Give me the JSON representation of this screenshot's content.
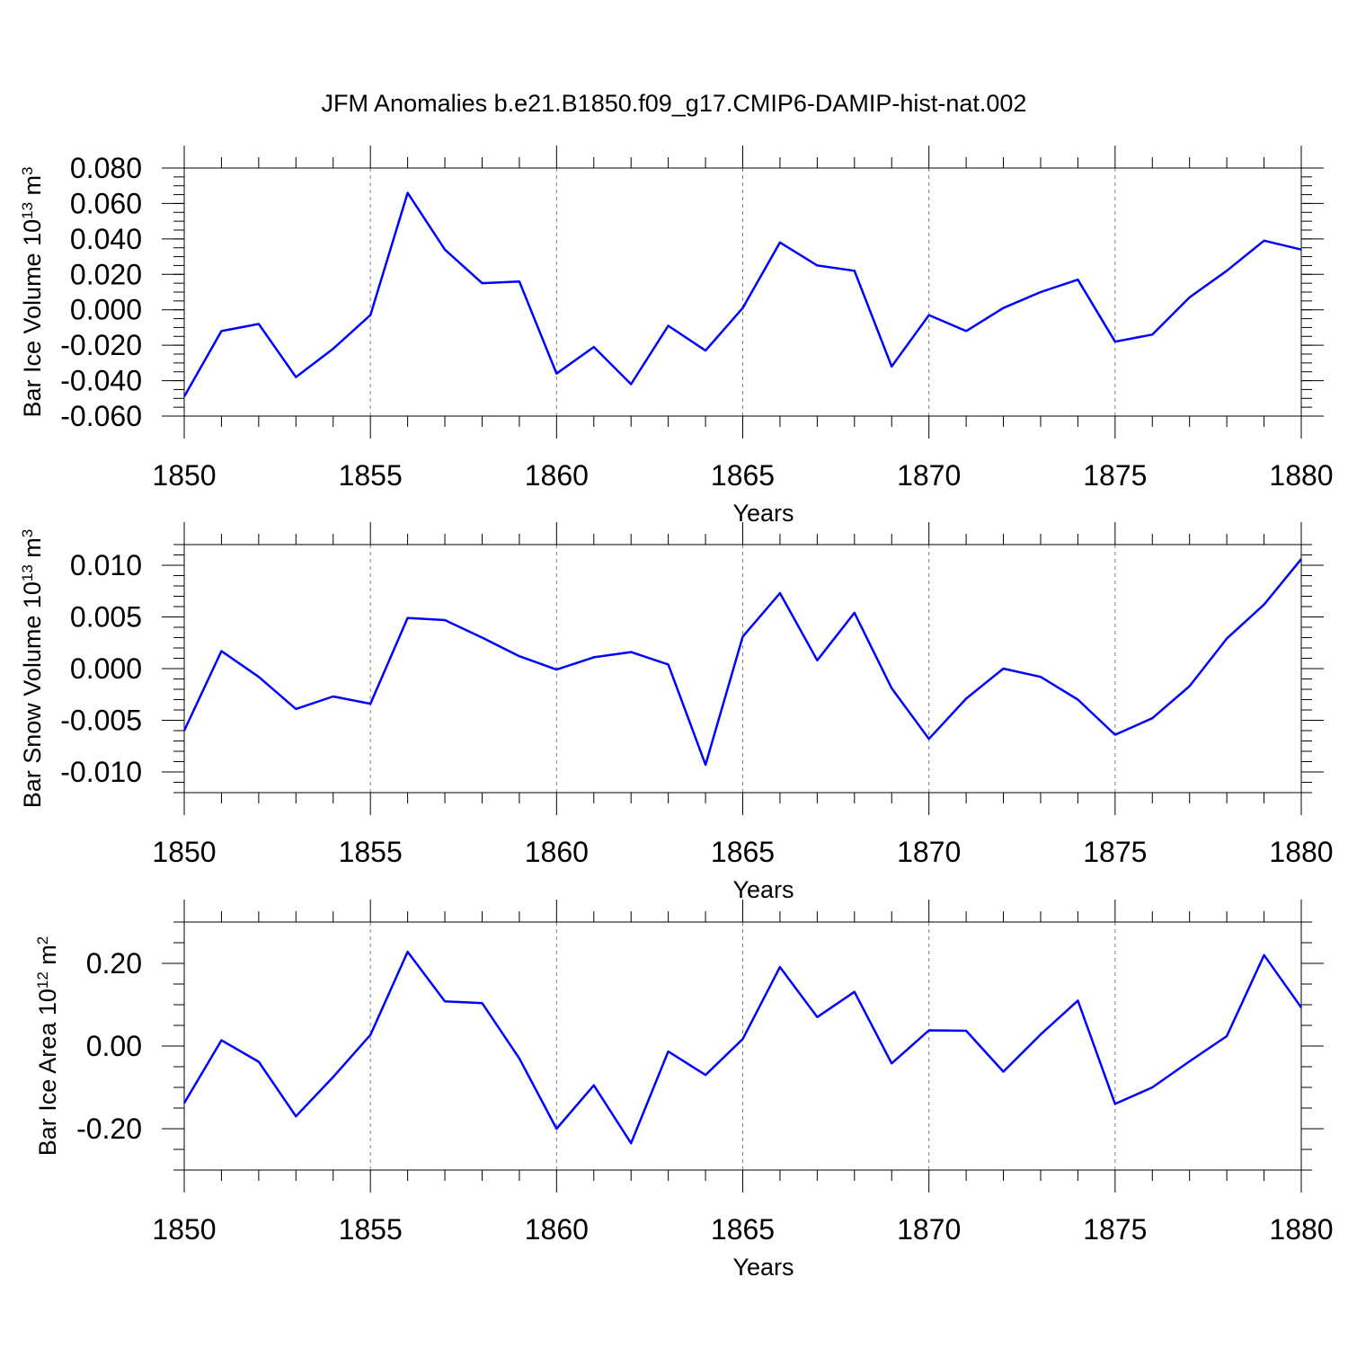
{
  "title": "JFM Anomalies b.e21.B1850.f09_g17.CMIP6-DAMIP-hist-nat.002",
  "colors": {
    "line": "#0000ff",
    "grid": "#808080",
    "frame": "#000000"
  },
  "chart_data": [
    {
      "type": "line",
      "ylabel": {
        "prefix": "Bar Ice Volume 10",
        "exp": "13",
        "unit": " m",
        "unit_exp": "3"
      },
      "xlabel": "Years",
      "xlim": [
        1850,
        1880
      ],
      "ylim": [
        -0.06,
        0.08
      ],
      "xticks": [
        1850,
        1855,
        1860,
        1865,
        1870,
        1875,
        1880
      ],
      "xtick_labels": [
        "1850",
        "1855",
        "1860",
        "1865",
        "1870",
        "1875",
        "1880"
      ],
      "yticks": [
        -0.06,
        -0.04,
        -0.02,
        0.0,
        0.02,
        0.04,
        0.06,
        0.08
      ],
      "ytick_labels": [
        "-0.060",
        "-0.040",
        "-0.020",
        "0.000",
        "0.020",
        "0.040",
        "0.060",
        "0.080"
      ],
      "yminor": 0.005,
      "grid": "vertical dashed at major x ticks",
      "x": [
        1850,
        1851,
        1852,
        1853,
        1854,
        1855,
        1856,
        1857,
        1858,
        1859,
        1860,
        1861,
        1862,
        1863,
        1864,
        1865,
        1866,
        1867,
        1868,
        1869,
        1870,
        1871,
        1872,
        1873,
        1874,
        1875,
        1876,
        1877,
        1878,
        1879,
        1880
      ],
      "values": [
        -0.049,
        -0.012,
        -0.008,
        -0.038,
        -0.022,
        -0.003,
        0.066,
        0.034,
        0.015,
        0.016,
        -0.036,
        -0.021,
        -0.042,
        -0.009,
        -0.023,
        0.001,
        0.038,
        0.025,
        0.022,
        -0.032,
        -0.003,
        -0.012,
        0.001,
        0.01,
        0.017,
        -0.018,
        -0.014,
        0.007,
        0.022,
        0.039,
        0.034
      ]
    },
    {
      "type": "line",
      "ylabel": {
        "prefix": "Bar Snow Volume 10",
        "exp": "13",
        "unit": " m",
        "unit_exp": "3"
      },
      "xlabel": "Years",
      "xlim": [
        1850,
        1880
      ],
      "ylim": [
        -0.012,
        0.012
      ],
      "xticks": [
        1850,
        1855,
        1860,
        1865,
        1870,
        1875,
        1880
      ],
      "xtick_labels": [
        "1850",
        "1855",
        "1860",
        "1865",
        "1870",
        "1875",
        "1880"
      ],
      "yticks": [
        -0.01,
        -0.005,
        0.0,
        0.005,
        0.01
      ],
      "ytick_labels": [
        "-0.010",
        "-0.005",
        "0.000",
        "0.005",
        "0.010"
      ],
      "yminor": 0.001,
      "grid": "vertical dashed at major x ticks",
      "x": [
        1850,
        1851,
        1852,
        1853,
        1854,
        1855,
        1856,
        1857,
        1858,
        1859,
        1860,
        1861,
        1862,
        1863,
        1864,
        1865,
        1866,
        1867,
        1868,
        1869,
        1870,
        1871,
        1872,
        1873,
        1874,
        1875,
        1876,
        1877,
        1878,
        1879,
        1880
      ],
      "values": [
        -0.006,
        0.0017,
        -0.0008,
        -0.0039,
        -0.0027,
        -0.0034,
        0.0049,
        0.0047,
        0.003,
        0.0012,
        -0.0001,
        0.0011,
        0.0016,
        0.0004,
        -0.0093,
        0.0031,
        0.0073,
        0.0008,
        0.0054,
        -0.0019,
        -0.0068,
        -0.0029,
        0.0,
        -0.0008,
        -0.003,
        -0.0064,
        -0.0048,
        -0.0017,
        0.0029,
        0.0062,
        0.0106
      ]
    },
    {
      "type": "line",
      "ylabel": {
        "prefix": "Bar Ice Area 10",
        "exp": "12",
        "unit": " m",
        "unit_exp": "2"
      },
      "xlabel": "Years",
      "xlim": [
        1850,
        1880
      ],
      "ylim": [
        -0.3,
        0.3
      ],
      "xticks": [
        1850,
        1855,
        1860,
        1865,
        1870,
        1875,
        1880
      ],
      "xtick_labels": [
        "1850",
        "1855",
        "1860",
        "1865",
        "1870",
        "1875",
        "1880"
      ],
      "yticks": [
        -0.2,
        0.0,
        0.2
      ],
      "ytick_labels": [
        "-0.20",
        "0.00",
        "0.20"
      ],
      "yminor": 0.05,
      "grid": "vertical dashed at major x ticks",
      "x": [
        1850,
        1851,
        1852,
        1853,
        1854,
        1855,
        1856,
        1857,
        1858,
        1859,
        1860,
        1861,
        1862,
        1863,
        1864,
        1865,
        1866,
        1867,
        1868,
        1869,
        1870,
        1871,
        1872,
        1873,
        1874,
        1875,
        1876,
        1877,
        1878,
        1879,
        1880
      ],
      "values": [
        -0.138,
        0.014,
        -0.038,
        -0.17,
        -0.075,
        0.027,
        0.228,
        0.108,
        0.104,
        -0.03,
        -0.2,
        -0.095,
        -0.235,
        -0.013,
        -0.07,
        0.017,
        0.191,
        0.07,
        0.131,
        -0.042,
        0.038,
        0.037,
        -0.062,
        0.028,
        0.11,
        -0.14,
        -0.1,
        -0.037,
        0.024,
        0.22,
        0.093
      ]
    }
  ]
}
